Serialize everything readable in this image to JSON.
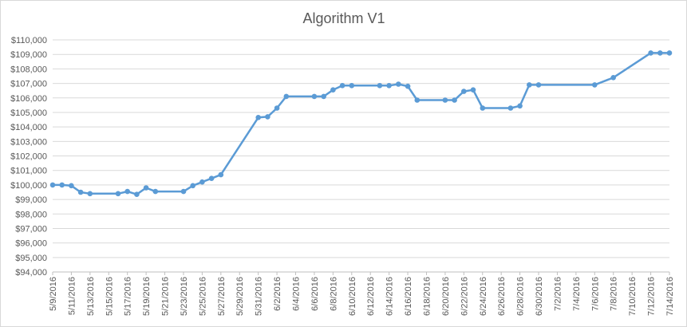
{
  "chart_data": {
    "type": "line",
    "title": "Algorithm V1",
    "xlabel": "",
    "ylabel": "",
    "ylim": [
      94000,
      110000
    ],
    "y_ticks": [
      94000,
      95000,
      96000,
      97000,
      98000,
      99000,
      100000,
      101000,
      102000,
      103000,
      104000,
      105000,
      106000,
      107000,
      108000,
      109000,
      110000
    ],
    "y_tick_labels": [
      "$94,000",
      "$95,000",
      "$96,000",
      "$97,000",
      "$98,000",
      "$99,000",
      "$100,000",
      "$101,000",
      "$102,000",
      "$103,000",
      "$104,000",
      "$105,000",
      "$106,000",
      "$107,000",
      "$108,000",
      "$109,000",
      "$110,000"
    ],
    "x_range": [
      "2016-05-09",
      "2016-07-14"
    ],
    "x_tick_labels": [
      "5/9/2016",
      "5/11/2016",
      "5/13/2016",
      "5/15/2016",
      "5/17/2016",
      "5/19/2016",
      "5/21/2016",
      "5/23/2016",
      "5/25/2016",
      "5/27/2016",
      "5/29/2016",
      "5/31/2016",
      "6/2/2016",
      "6/4/2016",
      "6/6/2016",
      "6/8/2016",
      "6/10/2016",
      "6/12/2016",
      "6/14/2016",
      "6/16/2016",
      "6/18/2016",
      "6/20/2016",
      "6/22/2016",
      "6/24/2016",
      "6/26/2016",
      "6/28/2016",
      "6/30/2016",
      "7/2/2016",
      "7/4/2016",
      "7/6/2016",
      "7/8/2016",
      "7/10/2016",
      "7/12/2016",
      "7/14/2016"
    ],
    "grid": true,
    "legend": "none",
    "series": [
      {
        "color": "#5b9bd5",
        "x": [
          "2016-05-09",
          "2016-05-10",
          "2016-05-11",
          "2016-05-12",
          "2016-05-13",
          "2016-05-16",
          "2016-05-17",
          "2016-05-18",
          "2016-05-19",
          "2016-05-20",
          "2016-05-23",
          "2016-05-24",
          "2016-05-25",
          "2016-05-26",
          "2016-05-27",
          "2016-05-31",
          "2016-06-01",
          "2016-06-02",
          "2016-06-03",
          "2016-06-06",
          "2016-06-07",
          "2016-06-08",
          "2016-06-09",
          "2016-06-10",
          "2016-06-13",
          "2016-06-14",
          "2016-06-15",
          "2016-06-16",
          "2016-06-17",
          "2016-06-20",
          "2016-06-21",
          "2016-06-22",
          "2016-06-23",
          "2016-06-24",
          "2016-06-27",
          "2016-06-28",
          "2016-06-29",
          "2016-06-30",
          "2016-07-06",
          "2016-07-08",
          "2016-07-12",
          "2016-07-13",
          "2016-07-14"
        ],
        "values": [
          100000,
          100000,
          99950,
          99500,
          99400,
          99400,
          99550,
          99350,
          99800,
          99550,
          99550,
          99950,
          100200,
          100450,
          100700,
          104650,
          104700,
          105300,
          106100,
          106100,
          106100,
          106550,
          106850,
          106850,
          106850,
          106850,
          106950,
          106800,
          105850,
          105850,
          105850,
          106450,
          106550,
          105300,
          105300,
          105450,
          106900,
          106900,
          106900,
          107400,
          109100,
          109100,
          109100
        ]
      }
    ]
  }
}
